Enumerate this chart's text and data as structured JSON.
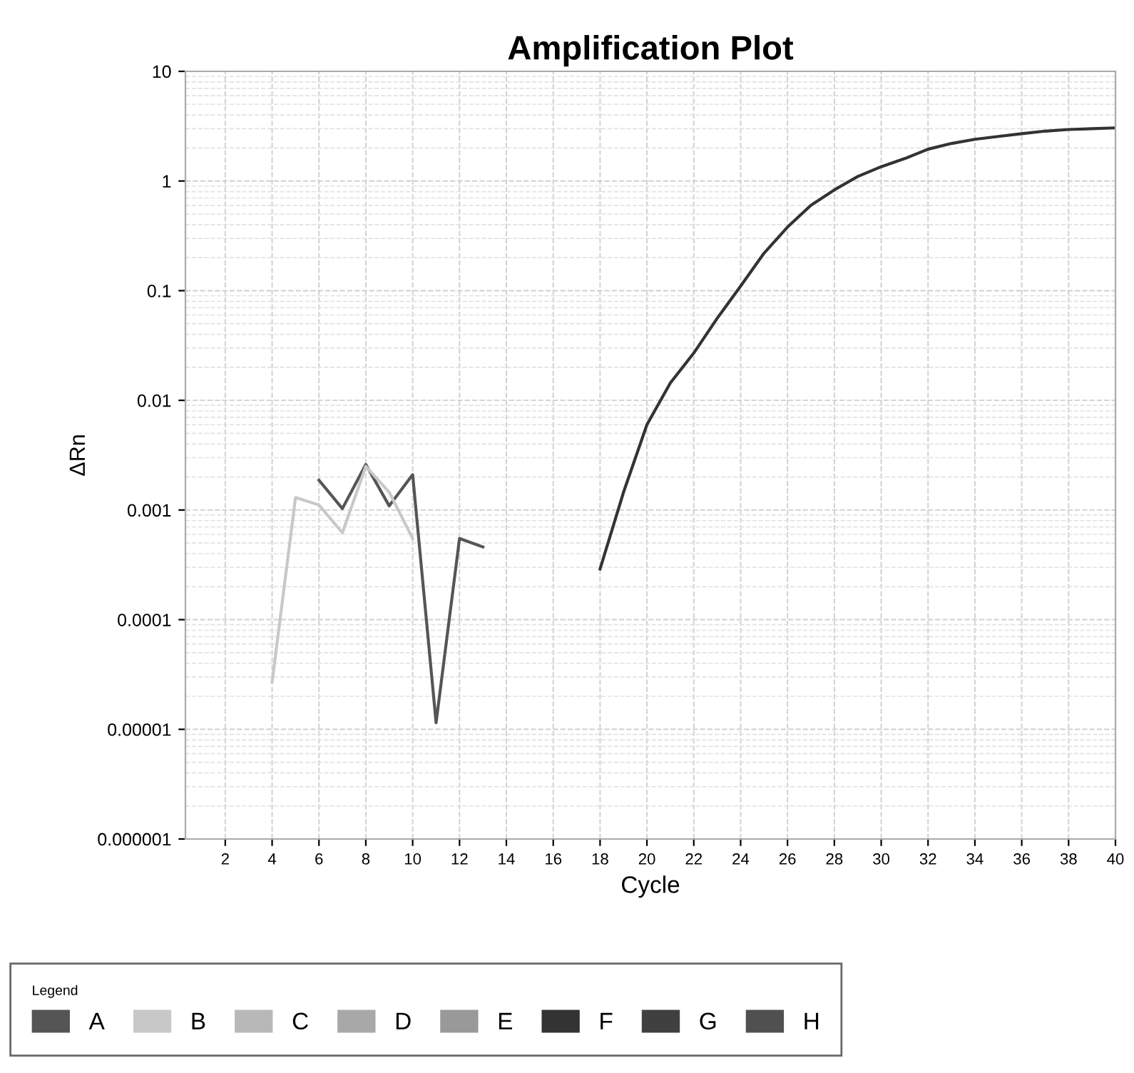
{
  "chart_data": {
    "type": "line",
    "title": "Amplification Plot",
    "xlabel": "Cycle",
    "ylabel": "ΔRn",
    "log": "y",
    "grid": true,
    "legend": "bottom",
    "legend_title": "Legend",
    "marker": "none",
    "line_style": "solid",
    "xlim": [
      0.3,
      40
    ],
    "xticks": [
      2,
      4,
      6,
      8,
      10,
      12,
      14,
      16,
      18,
      20,
      22,
      24,
      26,
      28,
      30,
      32,
      34,
      36,
      38,
      40
    ],
    "ylim": [
      1e-06,
      10
    ],
    "yticks": [
      {
        "value": 1e-06,
        "label": "0.000001"
      },
      {
        "value": 1e-05,
        "label": "0.00001"
      },
      {
        "value": 0.0001,
        "label": "0.0001"
      },
      {
        "value": 0.001,
        "label": "0.001"
      },
      {
        "value": 0.01,
        "label": "0.01"
      },
      {
        "value": 0.1,
        "label": "0.1"
      },
      {
        "value": 1,
        "label": "1"
      },
      {
        "value": 10,
        "label": "10"
      }
    ],
    "series": [
      {
        "name": "A",
        "color": "#555555",
        "x": [
          6,
          7,
          8,
          9,
          10,
          11,
          12,
          13
        ],
        "values": [
          0.00187,
          0.00103,
          0.0026,
          0.00109,
          0.0021,
          1.15e-05,
          0.00055,
          0.00046
        ]
      },
      {
        "name": "B",
        "color": "#c8c8c8",
        "x": [
          4,
          5,
          6,
          7,
          8,
          9,
          10
        ],
        "values": [
          2.7e-05,
          0.0013,
          0.00111,
          0.00062,
          0.0025,
          0.00145,
          0.00055
        ]
      },
      {
        "name": "C",
        "color": "#b8b8b8"
      },
      {
        "name": "D",
        "color": "#a8a8a8"
      },
      {
        "name": "E",
        "color": "#999999"
      },
      {
        "name": "F",
        "color": "#333333",
        "x": [
          18,
          19,
          20,
          21,
          22,
          23,
          24,
          25,
          26,
          27,
          28,
          29,
          30,
          31,
          32,
          33,
          34,
          35,
          36,
          37,
          38,
          39,
          40
        ],
        "values": [
          0.00029,
          0.00145,
          0.006,
          0.0144,
          0.027,
          0.056,
          0.11,
          0.22,
          0.38,
          0.6,
          0.83,
          1.1,
          1.35,
          1.6,
          1.95,
          2.2,
          2.4,
          2.55,
          2.7,
          2.85,
          2.95,
          3.0,
          3.05
        ]
      },
      {
        "name": "G",
        "color": "#404040"
      },
      {
        "name": "H",
        "color": "#505050"
      }
    ]
  }
}
